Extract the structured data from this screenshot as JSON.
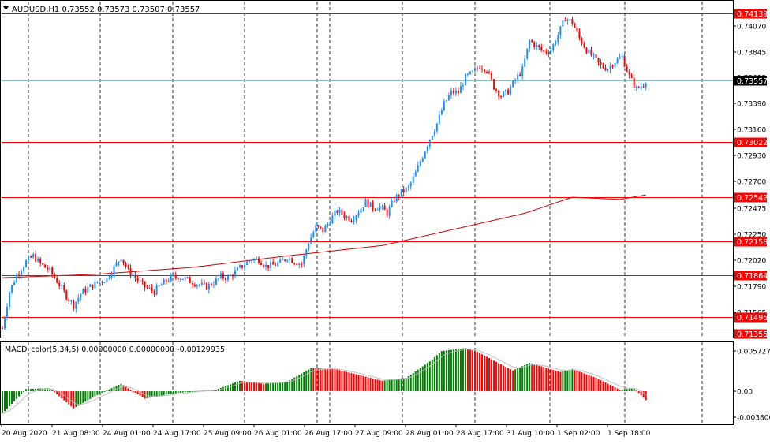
{
  "main_chart": {
    "header": "AUDUSD,H1  0.73552 0.73573 0.73507 0.73557",
    "price_labels": [
      "0.74070",
      "0.73845",
      "0.73615",
      "0.73390",
      "0.73160",
      "0.72930",
      "0.72700",
      "0.72475",
      "0.72250",
      "0.72020",
      "0.71790",
      "0.71565"
    ],
    "levels": [
      {
        "value": "0.74139",
        "price": 0.74139
      },
      {
        "value": "0.73022",
        "price": 0.73022
      },
      {
        "value": "0.72542",
        "price": 0.72542
      },
      {
        "value": "0.72158",
        "price": 0.72158
      },
      {
        "value": "0.71864",
        "price": 0.71864
      },
      {
        "value": "0.71495",
        "price": 0.71495
      },
      {
        "value": "0.71355",
        "price": 0.71355
      }
    ],
    "current_price": "0.73557",
    "current_price_value": 0.73557,
    "colors": {
      "bull": "#1e90ff",
      "bear": "#ff0000",
      "level": "#ff0000",
      "ma": "#cc0000",
      "current": "#8fbfbf"
    }
  },
  "macd_panel": {
    "header": "MACD_color(5,34,5) 0.00000000 0.00000000 -0.00129935",
    "scale_labels": [
      "0.0057270",
      "0.00",
      "-0.003806"
    ],
    "colors": {
      "up": "#008000",
      "down": "#ff0000",
      "signal": "#c0c0c0"
    }
  },
  "time_axis": [
    "20 Aug 2020",
    "21 Aug 08:00",
    "24 Aug 01:00",
    "24 Aug 17:00",
    "25 Aug 09:00",
    "26 Aug 01:00",
    "26 Aug 17:00",
    "27 Aug 09:00",
    "28 Aug 01:00",
    "28 Aug 17:00",
    "31 Aug 10:00",
    "1 Sep 02:00",
    "1 Sep 18:00"
  ],
  "chart_data": {
    "type": "candlestick",
    "symbol": "AUDUSD",
    "timeframe": "H1",
    "ylim": [
      0.7132,
      0.7424
    ],
    "anchors": [
      [
        0,
        0.714
      ],
      [
        3,
        0.7172
      ],
      [
        6,
        0.7186
      ],
      [
        10,
        0.7198
      ],
      [
        13,
        0.7203
      ],
      [
        16,
        0.7196
      ],
      [
        20,
        0.719
      ],
      [
        24,
        0.7178
      ],
      [
        27,
        0.7168
      ],
      [
        30,
        0.716
      ],
      [
        33,
        0.717
      ],
      [
        36,
        0.7175
      ],
      [
        40,
        0.718
      ],
      [
        44,
        0.7183
      ],
      [
        47,
        0.7193
      ],
      [
        50,
        0.7202
      ],
      [
        53,
        0.719
      ],
      [
        56,
        0.7184
      ],
      [
        60,
        0.7176
      ],
      [
        64,
        0.7172
      ],
      [
        67,
        0.7178
      ],
      [
        70,
        0.7183
      ],
      [
        74,
        0.7185
      ],
      [
        77,
        0.7183
      ],
      [
        80,
        0.718
      ],
      [
        83,
        0.7178
      ],
      [
        86,
        0.7176
      ],
      [
        89,
        0.718
      ],
      [
        92,
        0.7185
      ],
      [
        95,
        0.7184
      ],
      [
        98,
        0.7189
      ],
      [
        102,
        0.7196
      ],
      [
        105,
        0.72
      ],
      [
        108,
        0.72
      ],
      [
        111,
        0.7194
      ],
      [
        114,
        0.7195
      ],
      [
        117,
        0.7197
      ],
      [
        120,
        0.7202
      ],
      [
        123,
        0.7198
      ],
      [
        126,
        0.7196
      ],
      [
        129,
        0.7215
      ],
      [
        132,
        0.7228
      ],
      [
        135,
        0.7225
      ],
      [
        138,
        0.7234
      ],
      [
        141,
        0.7242
      ],
      [
        144,
        0.7238
      ],
      [
        147,
        0.7235
      ],
      [
        150,
        0.7242
      ],
      [
        153,
        0.725
      ],
      [
        156,
        0.7245
      ],
      [
        159,
        0.7246
      ],
      [
        162,
        0.724
      ],
      [
        165,
        0.7252
      ],
      [
        168,
        0.7258
      ],
      [
        171,
        0.7262
      ],
      [
        174,
        0.7275
      ],
      [
        177,
        0.729
      ],
      [
        180,
        0.7305
      ],
      [
        183,
        0.7318
      ],
      [
        186,
        0.7335
      ],
      [
        189,
        0.7345
      ],
      [
        192,
        0.7345
      ],
      [
        195,
        0.7358
      ],
      [
        198,
        0.7362
      ],
      [
        201,
        0.7368
      ],
      [
        204,
        0.7365
      ],
      [
        207,
        0.735
      ],
      [
        210,
        0.7342
      ],
      [
        213,
        0.7346
      ],
      [
        216,
        0.7356
      ],
      [
        219,
        0.7365
      ],
      [
        222,
        0.739
      ],
      [
        225,
        0.7385
      ],
      [
        228,
        0.738
      ],
      [
        231,
        0.7382
      ],
      [
        234,
        0.7395
      ],
      [
        237,
        0.741
      ],
      [
        240,
        0.7406
      ],
      [
        243,
        0.7392
      ],
      [
        246,
        0.7382
      ],
      [
        249,
        0.7375
      ],
      [
        252,
        0.7368
      ],
      [
        255,
        0.7366
      ],
      [
        258,
        0.7372
      ],
      [
        261,
        0.7376
      ],
      [
        264,
        0.7359
      ],
      [
        267,
        0.7348
      ],
      [
        270,
        0.7352
      ],
      [
        271,
        0.73557
      ]
    ],
    "moving_average": [
      [
        0,
        0.7184
      ],
      [
        40,
        0.7187
      ],
      [
        80,
        0.7193
      ],
      [
        120,
        0.7203
      ],
      [
        160,
        0.7212
      ],
      [
        190,
        0.7226
      ],
      [
        220,
        0.724
      ],
      [
        240,
        0.7254
      ],
      [
        260,
        0.7252
      ],
      [
        271,
        0.7256
      ]
    ],
    "macd_ylim": [
      -0.003806,
      0.005727
    ],
    "macd_points": [
      [
        0,
        -0.003
      ],
      [
        10,
        0.0003
      ],
      [
        20,
        0.0004
      ],
      [
        30,
        -0.0023
      ],
      [
        40,
        -0.0005
      ],
      [
        50,
        0.001
      ],
      [
        60,
        -0.001
      ],
      [
        70,
        -0.0004
      ],
      [
        80,
        0.0
      ],
      [
        90,
        0.0002
      ],
      [
        100,
        0.0014
      ],
      [
        110,
        0.001
      ],
      [
        120,
        0.0013
      ],
      [
        130,
        0.0031
      ],
      [
        140,
        0.003
      ],
      [
        150,
        0.0022
      ],
      [
        160,
        0.0014
      ],
      [
        170,
        0.0018
      ],
      [
        180,
        0.004
      ],
      [
        185,
        0.0054
      ],
      [
        195,
        0.0058
      ],
      [
        200,
        0.0053
      ],
      [
        210,
        0.0036
      ],
      [
        215,
        0.0028
      ],
      [
        222,
        0.0038
      ],
      [
        235,
        0.0026
      ],
      [
        240,
        0.003
      ],
      [
        250,
        0.0018
      ],
      [
        260,
        0.0002
      ],
      [
        266,
        0.0004
      ],
      [
        271,
        -0.0012
      ]
    ]
  }
}
